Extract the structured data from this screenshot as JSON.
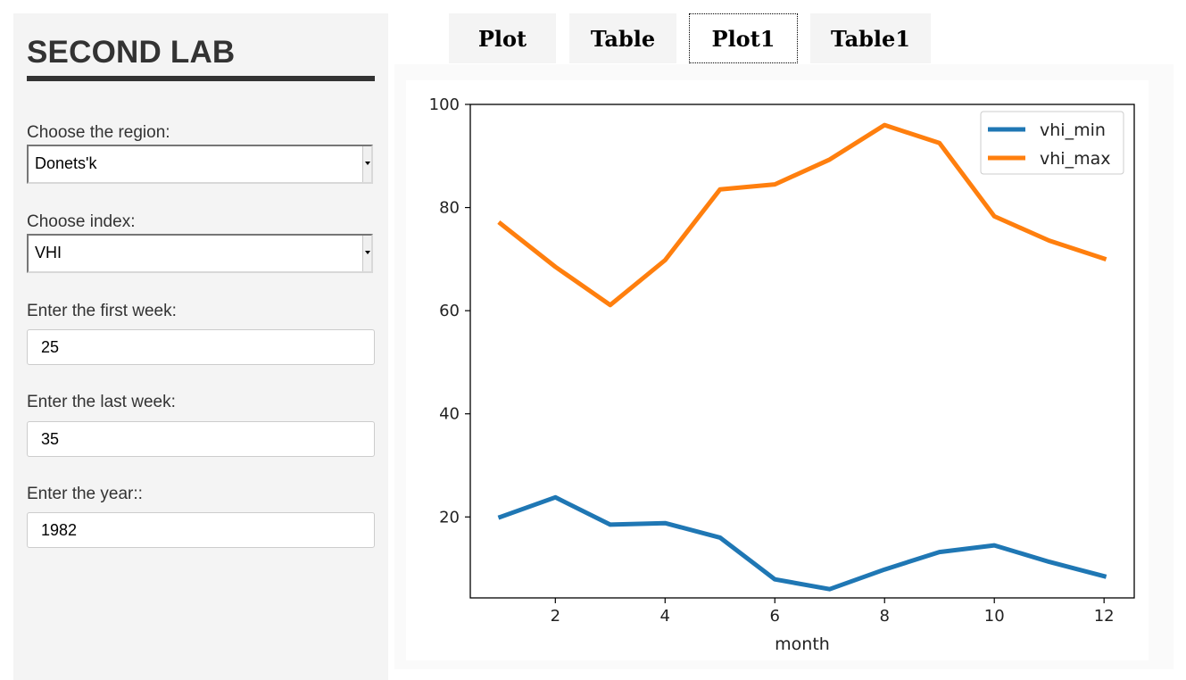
{
  "sidebar": {
    "title": "SECOND LAB",
    "region": {
      "label": "Choose the region:",
      "value": "Donets'k"
    },
    "index": {
      "label": "Choose index:",
      "value": "VHI"
    },
    "first_week": {
      "label": "Enter the first week:",
      "value": "25"
    },
    "last_week": {
      "label": "Enter the last week:",
      "value": "35"
    },
    "year": {
      "label": "Enter the year::",
      "value": "1982"
    }
  },
  "tabs": [
    {
      "label": "Plot",
      "active": false
    },
    {
      "label": "Table",
      "active": false
    },
    {
      "label": "Plot1",
      "active": true
    },
    {
      "label": "Table1",
      "active": false
    }
  ],
  "chart_data": {
    "type": "line",
    "xlabel": "month",
    "ylabel": "",
    "title": "",
    "x": [
      1,
      2,
      3,
      4,
      5,
      6,
      7,
      8,
      9,
      10,
      11,
      12
    ],
    "xlim": [
      0.45,
      12.55
    ],
    "ylim": [
      4.3,
      100
    ],
    "xticks": [
      2,
      4,
      6,
      8,
      10,
      12
    ],
    "yticks": [
      20,
      40,
      60,
      80,
      100
    ],
    "grid": false,
    "legend": "top-right",
    "series": [
      {
        "name": "vhi_min",
        "color": "#1f77b4",
        "values": [
          20.0,
          23.8,
          18.5,
          18.8,
          16.0,
          7.9,
          6.0,
          9.8,
          13.2,
          14.5,
          11.3,
          8.5
        ]
      },
      {
        "name": "vhi_max",
        "color": "#ff7f0e",
        "values": [
          76.9,
          68.5,
          61.1,
          69.8,
          83.5,
          84.5,
          89.3,
          96.0,
          92.5,
          78.3,
          73.6,
          70.1
        ]
      }
    ]
  }
}
